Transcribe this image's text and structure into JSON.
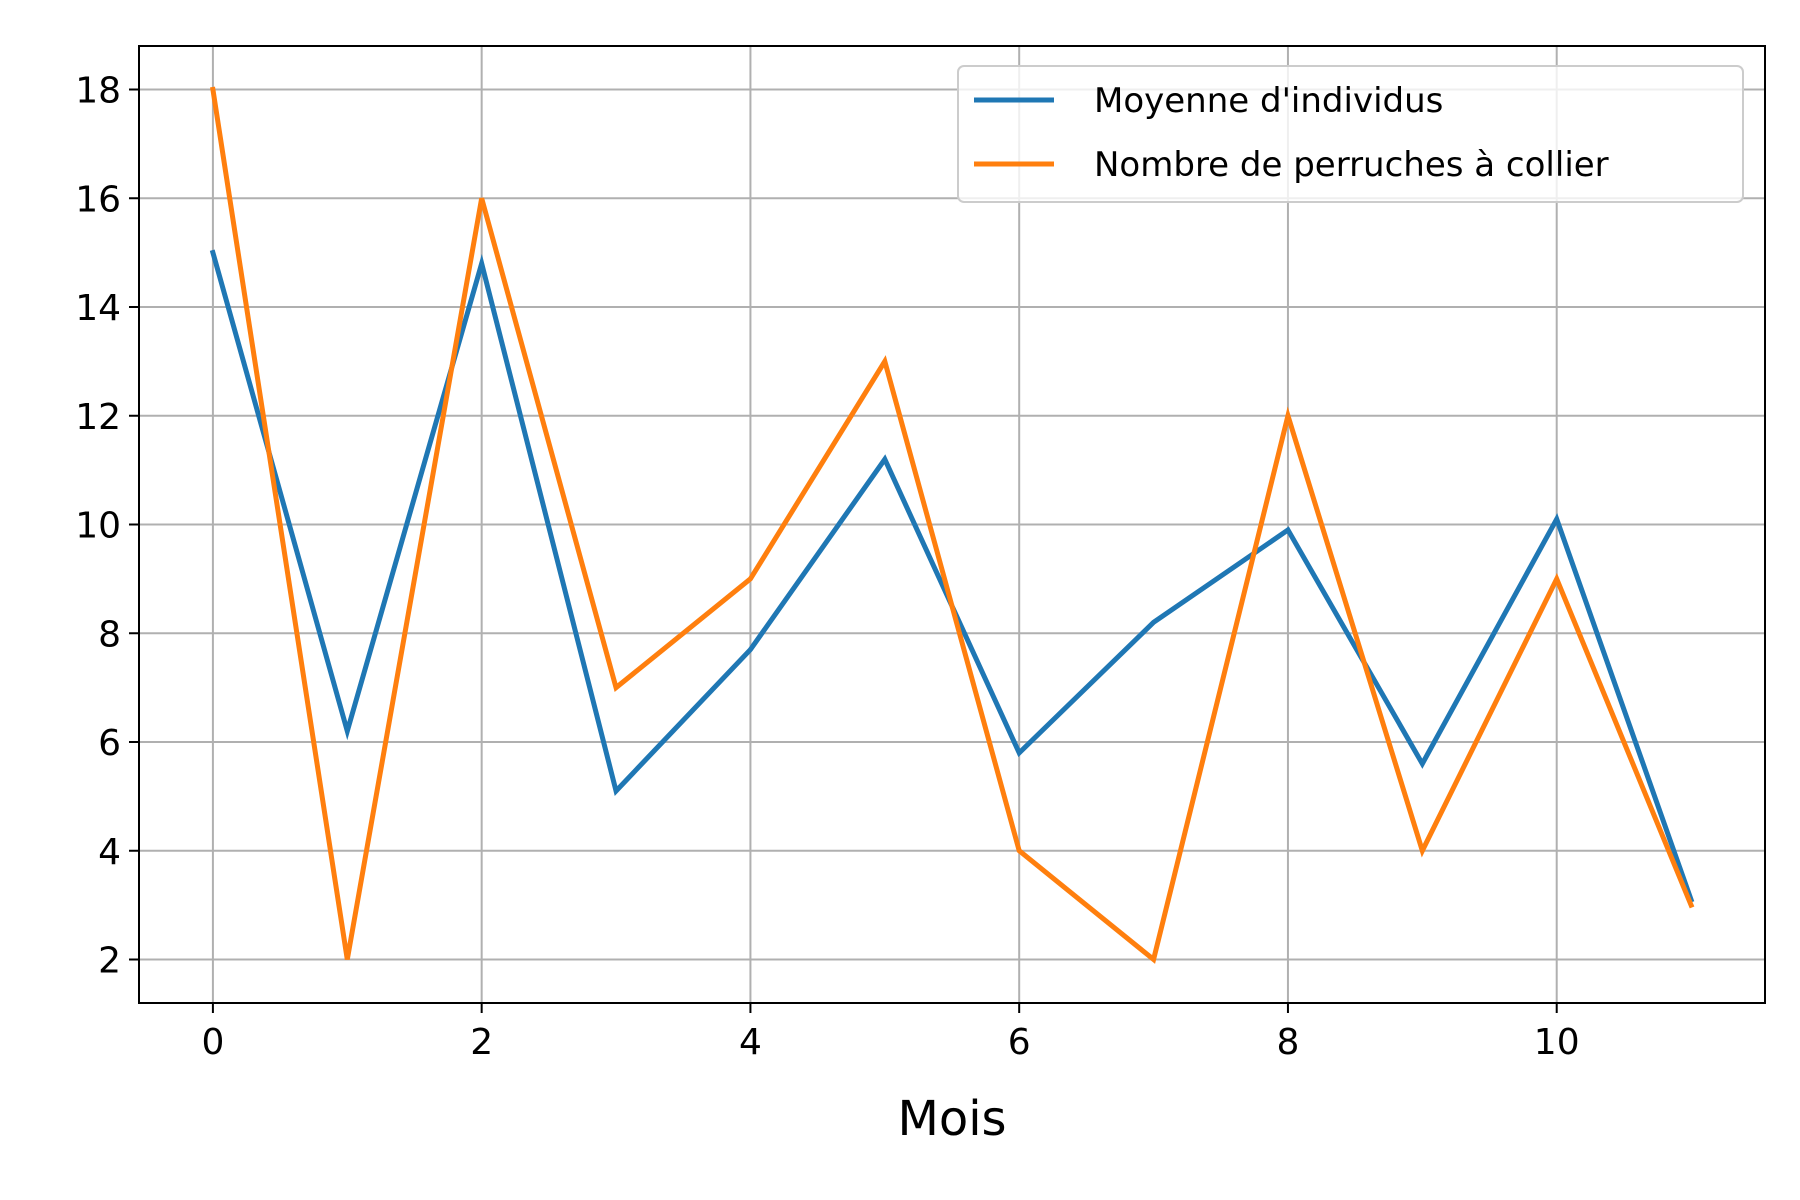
{
  "chart_data": {
    "type": "line",
    "title": "",
    "xlabel": "Mois",
    "ylabel": "",
    "x": [
      0,
      1,
      2,
      3,
      4,
      5,
      6,
      7,
      8,
      9,
      10,
      11
    ],
    "xlim": [
      -0.55,
      11.55
    ],
    "ylim": [
      1.2,
      18.8
    ],
    "xticks": [
      0,
      2,
      4,
      6,
      8,
      10
    ],
    "yticks": [
      2,
      4,
      6,
      8,
      10,
      12,
      14,
      16,
      18
    ],
    "grid": true,
    "legend_position": "top-right",
    "series": [
      {
        "name": "Moyenne d'individus",
        "color": "#1f77b4",
        "values": [
          15.0,
          6.2,
          14.8,
          5.1,
          7.7,
          11.2,
          5.8,
          8.2,
          9.9,
          5.6,
          10.1,
          3.1
        ]
      },
      {
        "name": "Nombre de perruches à collier",
        "color": "#ff7f0e",
        "values": [
          18,
          2,
          16,
          7,
          9,
          13,
          4,
          2,
          12,
          4,
          9,
          3
        ]
      }
    ]
  }
}
